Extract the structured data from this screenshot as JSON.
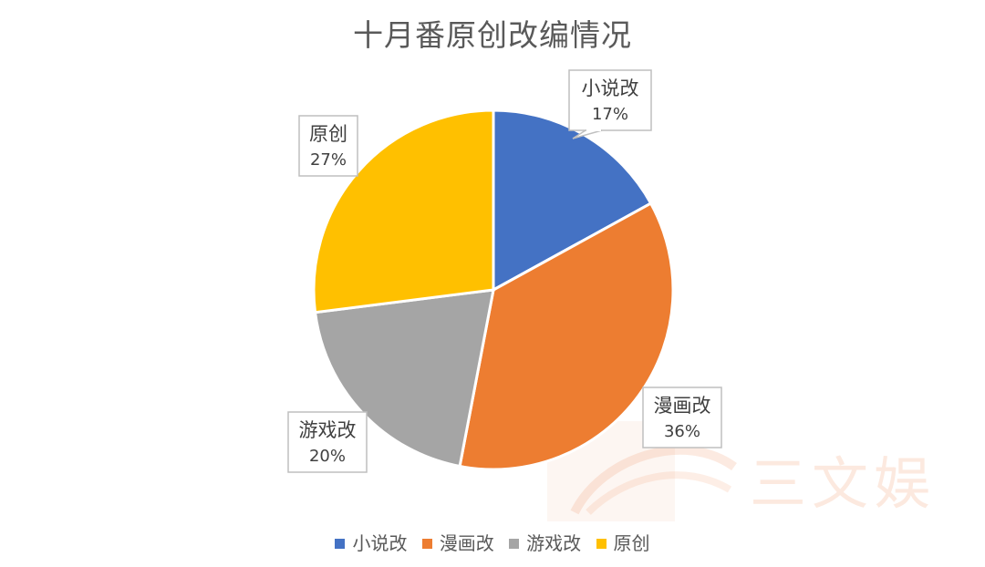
{
  "chart_data": {
    "type": "pie",
    "title": "十月番原创改编情况",
    "categories": [
      "小说改",
      "漫画改",
      "游戏改",
      "原创"
    ],
    "values": [
      17,
      36,
      20,
      27
    ],
    "value_labels": [
      "17%",
      "36%",
      "20%",
      "27%"
    ],
    "colors": [
      "#4472c4",
      "#ed7d31",
      "#a5a5a5",
      "#ffc000"
    ],
    "legend_position": "bottom",
    "start_angle_deg": 0,
    "direction": "clockwise"
  },
  "watermark": {
    "text": "三文娱"
  }
}
